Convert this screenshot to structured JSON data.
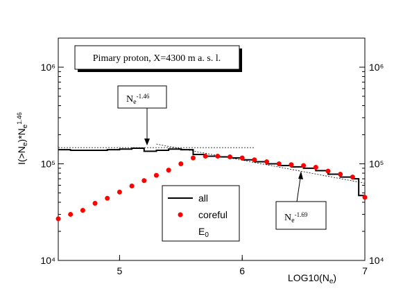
{
  "chart_data": {
    "type": "line",
    "y_label": {
      "main": "I(>N",
      "sub": "e",
      "mid": ")*N",
      "sub2": "e",
      "sup": "1.46"
    },
    "x_label": {
      "main": "LOG10(N",
      "sub": "e",
      "end": ")"
    },
    "xlim": [
      4.5,
      7
    ],
    "xticks": [
      5,
      6,
      7
    ],
    "ylim": [
      10000,
      2000000
    ],
    "log_y": true,
    "yticks": [
      {
        "value": 10000,
        "label": "10⁴"
      },
      {
        "value": 100000,
        "label": "10⁵"
      },
      {
        "value": 1000000,
        "label": "10⁶"
      }
    ],
    "series": [
      {
        "name": "all",
        "color": "#000000",
        "style": "steps",
        "bins": [
          4.5,
          4.6,
          4.7,
          4.8,
          4.9,
          5.0,
          5.1,
          5.2,
          5.3,
          5.4,
          5.5,
          5.6,
          5.7,
          5.8,
          5.9,
          6.0,
          6.1,
          6.2,
          6.3,
          6.4,
          6.5,
          6.6,
          6.7,
          6.8,
          6.9,
          6.95,
          7.0
        ],
        "values": [
          140000,
          138000,
          138000,
          138000,
          140000,
          142000,
          145000,
          135000,
          138000,
          142000,
          140000,
          125000,
          120000,
          118000,
          115000,
          110000,
          105000,
          100000,
          96000,
          93000,
          90000,
          85000,
          78000,
          73000,
          70000,
          47000
        ]
      },
      {
        "name": "coreful",
        "color": "#ff0000",
        "style": "markers",
        "x": [
          4.5,
          4.6,
          4.7,
          4.8,
          4.9,
          5.0,
          5.1,
          5.2,
          5.3,
          5.4,
          5.5,
          5.6,
          5.7,
          5.8,
          5.9,
          6.0,
          6.1,
          6.2,
          6.3,
          6.4,
          6.5,
          6.6,
          6.7,
          6.8,
          6.9,
          7.0
        ],
        "values": [
          27000,
          30000,
          33000,
          39000,
          44000,
          51000,
          59000,
          67000,
          76000,
          86000,
          100000,
          115000,
          120000,
          120000,
          118000,
          115000,
          110000,
          105000,
          100000,
          98000,
          96000,
          92000,
          84000,
          78000,
          73000,
          45000
        ]
      }
    ],
    "legend_extra": {
      "main": "E",
      "sub": "0"
    },
    "fit_lines": [
      {
        "x": [
          4.5,
          6.1
        ],
        "values": [
          147000,
          147000
        ]
      },
      {
        "x": [
          5.3,
          7.0
        ],
        "values": [
          160000,
          63000
        ]
      }
    ],
    "title_box": "Pimary proton, X=4300 m a. s. l.",
    "annotations": [
      {
        "main": "N",
        "sub": "e",
        "sup": "-1.46"
      },
      {
        "main": "N",
        "sub": "e",
        "sup": "-1.69"
      }
    ]
  }
}
